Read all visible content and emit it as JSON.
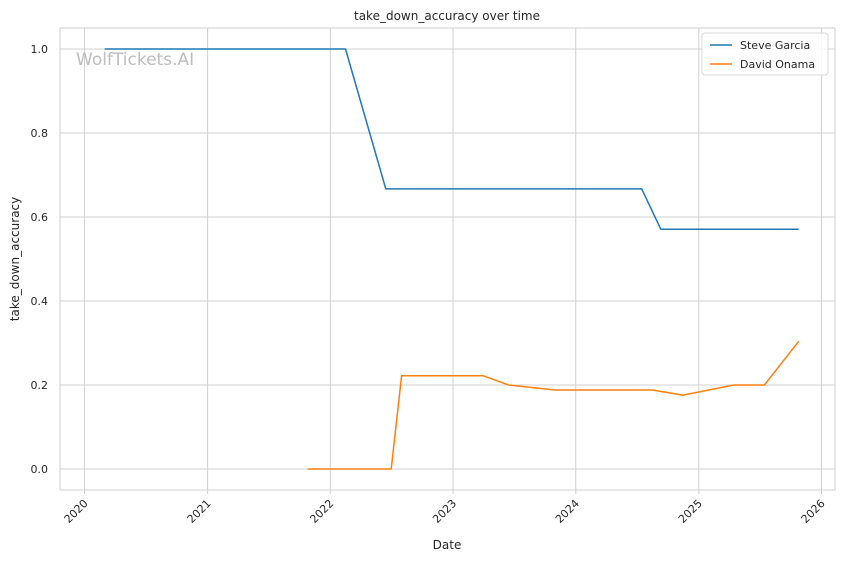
{
  "chart_data": {
    "type": "line",
    "title": "take_down_accuracy over time",
    "xlabel": "Date",
    "ylabel": "take_down_accuracy",
    "watermark": "WolfTickets.AI",
    "xlim": [
      "2019-10-20",
      "2026-02-10"
    ],
    "ylim": [
      -0.05,
      1.05
    ],
    "x_ticks": [
      "2020",
      "2021",
      "2022",
      "2023",
      "2024",
      "2025",
      "2026"
    ],
    "y_ticks": [
      "0.0",
      "0.2",
      "0.4",
      "0.6",
      "0.8",
      "1.0"
    ],
    "grid": true,
    "legend_position": "top-right",
    "series": [
      {
        "name": "Steve Garcia",
        "color": "#1f77b4",
        "x": [
          "2020-03-01",
          "2022-02-15",
          "2022-06-15",
          "2024-07-15",
          "2024-09-10",
          "2025-10-25"
        ],
        "y": [
          1.0,
          1.0,
          0.667,
          0.667,
          0.571,
          0.571
        ]
      },
      {
        "name": "David Onama",
        "color": "#ff7f0e",
        "x": [
          "2021-10-25",
          "2022-07-01",
          "2022-08-01",
          "2023-04-01",
          "2023-06-15",
          "2023-11-01",
          "2024-08-15",
          "2024-11-15",
          "2025-04-15",
          "2025-07-15",
          "2025-10-25"
        ],
        "y": [
          0.0,
          0.0,
          0.222,
          0.222,
          0.2,
          0.188,
          0.188,
          0.176,
          0.2,
          0.2,
          0.304
        ]
      }
    ]
  }
}
